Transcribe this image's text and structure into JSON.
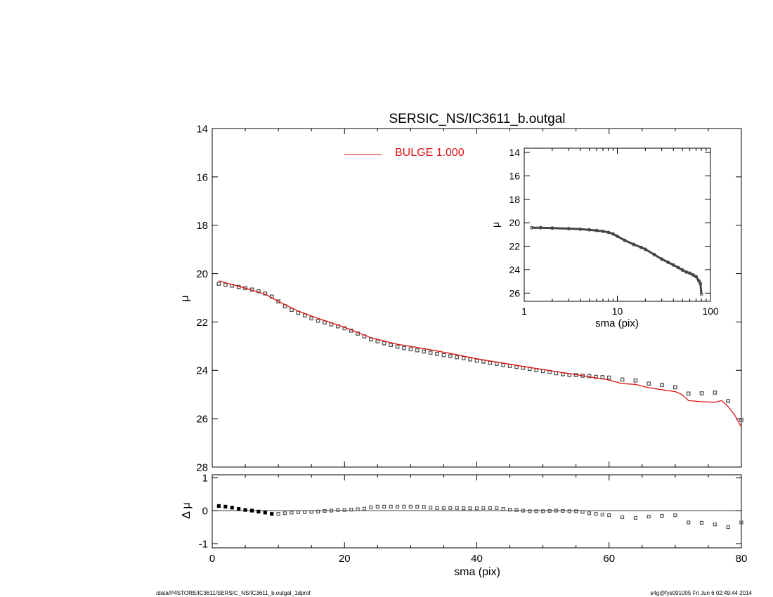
{
  "footer": {
    "path": "/data/P4STORE/IC3611/SERSIC_NS/IC3611_b.outgal_1dprof",
    "stamp": "s4g@fys091005  Fri Jun  6 02:49:44 2014"
  },
  "colors": {
    "model": "#e01010",
    "data": "#555555",
    "axis": "#000000"
  },
  "chart_data": [
    {
      "id": "main",
      "type": "scatter",
      "title": "SERSIC_NS/IC3611_b.outgal",
      "xlabel": "",
      "ylabel": "μ",
      "xlim": [
        0,
        80
      ],
      "ylim": [
        28,
        14
      ],
      "y_inverted": true,
      "xticks": [
        0,
        20,
        40,
        60,
        80
      ],
      "yticks": [
        14,
        16,
        18,
        20,
        22,
        24,
        26,
        28
      ],
      "legend": {
        "label": "BULGE  1.000",
        "color": "#e01010",
        "placement": "top-center"
      },
      "data_points": {
        "x": [
          1,
          2,
          3,
          4,
          5,
          6,
          7,
          8,
          9,
          10,
          11,
          12,
          13,
          14,
          15,
          16,
          17,
          18,
          19,
          20,
          21,
          22,
          23,
          24,
          25,
          26,
          27,
          28,
          29,
          30,
          31,
          32,
          33,
          34,
          35,
          36,
          37,
          38,
          39,
          40,
          41,
          42,
          43,
          44,
          45,
          46,
          47,
          48,
          49,
          50,
          51,
          52,
          53,
          54,
          55,
          56,
          57,
          58,
          59,
          60,
          62,
          64,
          66,
          68,
          70,
          72,
          74,
          76,
          78,
          80
        ],
        "y": [
          20.42,
          20.46,
          20.5,
          20.55,
          20.6,
          20.66,
          20.73,
          20.82,
          20.95,
          21.15,
          21.35,
          21.5,
          21.62,
          21.73,
          21.85,
          21.95,
          22.02,
          22.1,
          22.18,
          22.26,
          22.36,
          22.48,
          22.6,
          22.72,
          22.8,
          22.88,
          22.95,
          23.02,
          23.08,
          23.13,
          23.17,
          23.22,
          23.27,
          23.32,
          23.37,
          23.41,
          23.46,
          23.5,
          23.55,
          23.6,
          23.64,
          23.69,
          23.73,
          23.78,
          23.82,
          23.86,
          23.9,
          23.94,
          23.99,
          24.03,
          24.07,
          24.12,
          24.16,
          24.2,
          24.2,
          24.22,
          24.24,
          24.27,
          24.28,
          24.3,
          24.38,
          24.42,
          24.55,
          24.6,
          24.7,
          24.96,
          24.95,
          24.92,
          25.27,
          26.05
        ]
      },
      "model_line": {
        "name": "BULGE  1.000",
        "x": [
          1,
          3,
          5,
          8,
          10,
          13,
          16,
          20,
          24,
          28,
          32,
          36,
          40,
          44,
          48,
          52,
          56,
          60,
          62,
          64,
          66,
          68,
          70,
          71,
          72,
          74,
          76,
          77,
          78,
          79,
          80
        ],
        "y": [
          20.3,
          20.45,
          20.6,
          20.85,
          21.15,
          21.55,
          21.85,
          22.22,
          22.65,
          22.92,
          23.1,
          23.3,
          23.52,
          23.7,
          23.88,
          24.05,
          24.22,
          24.4,
          24.55,
          24.58,
          24.72,
          24.8,
          24.88,
          25.0,
          25.25,
          25.3,
          25.32,
          25.25,
          25.5,
          25.85,
          26.35
        ]
      }
    },
    {
      "id": "residual",
      "type": "scatter",
      "title": "",
      "xlabel": "sma (pix)",
      "ylabel": "Δ μ",
      "xlim": [
        0,
        80
      ],
      "ylim": [
        -1,
        1
      ],
      "xticks": [
        0,
        20,
        40,
        60,
        80
      ],
      "yticks": [
        -1,
        0,
        1
      ],
      "zero_line": 0,
      "data_points": {
        "x": [
          1,
          2,
          3,
          4,
          5,
          6,
          7,
          8,
          9,
          10,
          11,
          12,
          13,
          14,
          15,
          16,
          17,
          18,
          19,
          20,
          21,
          22,
          23,
          24,
          25,
          26,
          27,
          28,
          29,
          30,
          31,
          32,
          33,
          34,
          35,
          36,
          37,
          38,
          39,
          40,
          41,
          42,
          43,
          44,
          45,
          46,
          47,
          48,
          49,
          50,
          51,
          52,
          53,
          54,
          55,
          56,
          57,
          58,
          59,
          60,
          62,
          64,
          66,
          68,
          70,
          72,
          74,
          76,
          78,
          80
        ],
        "y": [
          0.14,
          0.12,
          0.09,
          0.05,
          0.02,
          0.0,
          -0.03,
          -0.06,
          -0.1,
          -0.1,
          -0.08,
          -0.06,
          -0.05,
          -0.05,
          -0.04,
          -0.03,
          -0.01,
          0.0,
          0.02,
          0.02,
          0.03,
          0.04,
          0.06,
          0.1,
          0.12,
          0.12,
          0.12,
          0.12,
          0.12,
          0.12,
          0.12,
          0.11,
          0.09,
          0.08,
          0.08,
          0.08,
          0.08,
          0.07,
          0.07,
          0.07,
          0.08,
          0.08,
          0.08,
          0.05,
          0.03,
          0.02,
          0.0,
          -0.02,
          -0.02,
          -0.02,
          -0.01,
          0.0,
          -0.01,
          -0.02,
          -0.02,
          -0.04,
          -0.08,
          -0.1,
          -0.12,
          -0.14,
          -0.2,
          -0.22,
          -0.18,
          -0.16,
          -0.14,
          -0.36,
          -0.37,
          -0.42,
          -0.5,
          -0.36
        ]
      }
    },
    {
      "id": "inset",
      "type": "line",
      "title": "",
      "xlabel": "sma (pix)",
      "ylabel": "μ",
      "xscale": "log",
      "xlim": [
        1,
        100
      ],
      "ylim": [
        26.7,
        14
      ],
      "y_inverted": true,
      "xticks": [
        1,
        10,
        100
      ],
      "yticks": [
        14,
        16,
        18,
        20,
        22,
        24,
        26
      ],
      "profile": {
        "x": [
          1.2,
          1.5,
          2,
          3,
          4,
          5,
          6,
          7,
          8,
          9,
          10,
          12,
          15,
          18,
          20,
          25,
          30,
          35,
          40,
          45,
          50,
          55,
          60,
          65,
          70,
          75,
          78,
          80
        ],
        "y": [
          20.42,
          20.42,
          20.45,
          20.5,
          20.55,
          20.6,
          20.66,
          20.73,
          20.82,
          20.95,
          21.15,
          21.5,
          21.85,
          22.1,
          22.26,
          22.72,
          23.1,
          23.37,
          23.6,
          23.82,
          24.03,
          24.2,
          24.3,
          24.45,
          24.6,
          24.95,
          25.2,
          26.1
        ]
      }
    }
  ]
}
